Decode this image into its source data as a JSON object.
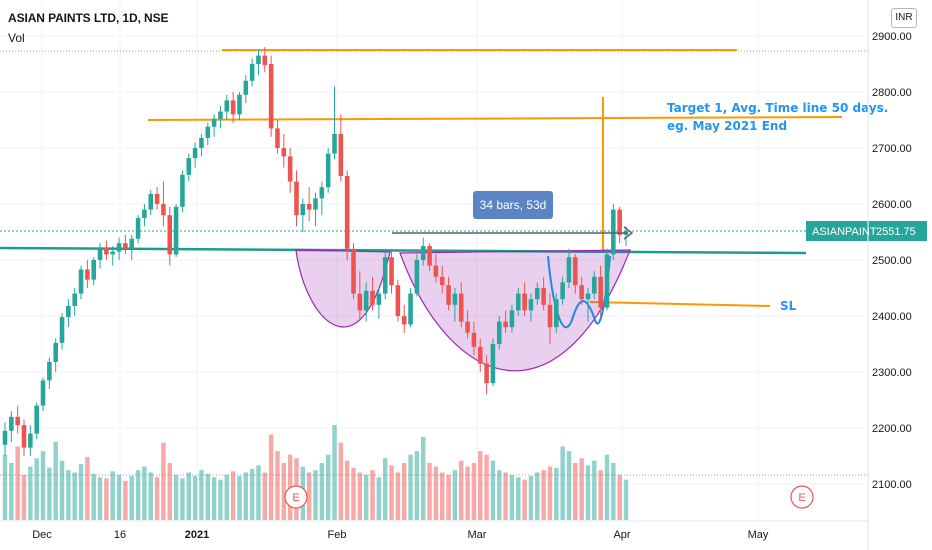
{
  "header": {
    "title": "ASIAN PAINTS LTD, 1D, NSE",
    "indicator": "Vol"
  },
  "currency": "INR",
  "colors": {
    "up": "#26a69a",
    "down": "#ef5350",
    "neckline": "#1a9e8c",
    "level": "#ff9800",
    "cup": "#9c27b0",
    "annotation": "#2196f3",
    "handle": "#1e88e5"
  },
  "price_tag": {
    "symbol": "ASIANPAINT",
    "price": "2551.75"
  },
  "earnings_marker": "E",
  "annotations": {
    "target": [
      "Target 1, Avg. Time line 50 days.",
      "eg. May 2021 End"
    ],
    "stop_loss": "SL",
    "range": "34 bars, 53d"
  },
  "chart_data": {
    "type": "candlestick",
    "yaxis": {
      "ticks": [
        "2100.00",
        "2200.00",
        "2300.00",
        "2400.00",
        "2500.00",
        "2600.00",
        "2700.00",
        "2800.00",
        "2900.00"
      ],
      "range": [
        2035,
        2920
      ]
    },
    "xaxis": {
      "ticks": [
        "Dec",
        "16",
        "2021",
        "Feb",
        "Mar",
        "Apr",
        "May"
      ]
    },
    "levels": {
      "top": 2875,
      "target": 2755,
      "neckline": 2515,
      "stop_loss": 2425,
      "last_price": 2551.75
    },
    "candles_ohlc": [
      [
        2170,
        2210,
        2150,
        2195
      ],
      [
        2195,
        2230,
        2175,
        2220
      ],
      [
        2220,
        2240,
        2190,
        2205
      ],
      [
        2205,
        2215,
        2150,
        2165
      ],
      [
        2165,
        2205,
        2150,
        2190
      ],
      [
        2190,
        2245,
        2180,
        2240
      ],
      [
        2240,
        2290,
        2230,
        2285
      ],
      [
        2285,
        2325,
        2270,
        2318
      ],
      [
        2318,
        2360,
        2300,
        2352
      ],
      [
        2352,
        2405,
        2340,
        2398
      ],
      [
        2398,
        2430,
        2380,
        2418
      ],
      [
        2418,
        2450,
        2400,
        2440
      ],
      [
        2440,
        2490,
        2430,
        2483
      ],
      [
        2483,
        2500,
        2450,
        2465
      ],
      [
        2465,
        2505,
        2455,
        2500
      ],
      [
        2500,
        2530,
        2485,
        2522
      ],
      [
        2522,
        2535,
        2500,
        2510
      ],
      [
        2510,
        2525,
        2490,
        2515
      ],
      [
        2515,
        2540,
        2500,
        2530
      ],
      [
        2530,
        2545,
        2510,
        2520
      ],
      [
        2520,
        2545,
        2500,
        2538
      ],
      [
        2538,
        2580,
        2530,
        2575
      ],
      [
        2575,
        2600,
        2560,
        2590
      ],
      [
        2590,
        2625,
        2580,
        2618
      ],
      [
        2618,
        2630,
        2590,
        2600
      ],
      [
        2600,
        2640,
        2560,
        2580
      ],
      [
        2580,
        2595,
        2490,
        2510
      ],
      [
        2510,
        2600,
        2505,
        2595
      ],
      [
        2595,
        2660,
        2585,
        2652
      ],
      [
        2652,
        2690,
        2640,
        2682
      ],
      [
        2682,
        2710,
        2665,
        2700
      ],
      [
        2700,
        2725,
        2685,
        2718
      ],
      [
        2718,
        2745,
        2705,
        2738
      ],
      [
        2738,
        2760,
        2720,
        2752
      ],
      [
        2752,
        2775,
        2735,
        2765
      ],
      [
        2765,
        2795,
        2750,
        2785
      ],
      [
        2785,
        2800,
        2745,
        2760
      ],
      [
        2760,
        2800,
        2750,
        2795
      ],
      [
        2795,
        2830,
        2780,
        2820
      ],
      [
        2820,
        2860,
        2810,
        2850
      ],
      [
        2850,
        2875,
        2830,
        2865
      ],
      [
        2865,
        2880,
        2835,
        2848
      ],
      [
        2850,
        2865,
        2720,
        2735
      ],
      [
        2735,
        2750,
        2690,
        2700
      ],
      [
        2700,
        2725,
        2665,
        2685
      ],
      [
        2685,
        2700,
        2620,
        2640
      ],
      [
        2640,
        2660,
        2560,
        2580
      ],
      [
        2580,
        2610,
        2550,
        2600
      ],
      [
        2600,
        2630,
        2570,
        2590
      ],
      [
        2590,
        2620,
        2560,
        2610
      ],
      [
        2610,
        2640,
        2580,
        2630
      ],
      [
        2630,
        2700,
        2620,
        2690
      ],
      [
        2690,
        2810,
        2680,
        2725
      ],
      [
        2725,
        2760,
        2640,
        2650
      ],
      [
        2650,
        2660,
        2500,
        2520
      ],
      [
        2520,
        2530,
        2430,
        2440
      ],
      [
        2440,
        2480,
        2395,
        2410
      ],
      [
        2410,
        2460,
        2390,
        2445
      ],
      [
        2445,
        2470,
        2410,
        2420
      ],
      [
        2420,
        2450,
        2395,
        2440
      ],
      [
        2440,
        2520,
        2430,
        2505
      ],
      [
        2505,
        2520,
        2440,
        2455
      ],
      [
        2455,
        2465,
        2390,
        2400
      ],
      [
        2400,
        2420,
        2370,
        2385
      ],
      [
        2385,
        2450,
        2380,
        2440
      ],
      [
        2440,
        2510,
        2435,
        2500
      ],
      [
        2500,
        2540,
        2490,
        2525
      ],
      [
        2525,
        2530,
        2480,
        2490
      ],
      [
        2490,
        2510,
        2460,
        2470
      ],
      [
        2470,
        2490,
        2440,
        2455
      ],
      [
        2455,
        2470,
        2410,
        2420
      ],
      [
        2420,
        2450,
        2390,
        2440
      ],
      [
        2440,
        2460,
        2380,
        2390
      ],
      [
        2390,
        2410,
        2360,
        2370
      ],
      [
        2370,
        2390,
        2330,
        2345
      ],
      [
        2345,
        2360,
        2300,
        2315
      ],
      [
        2315,
        2330,
        2260,
        2280
      ],
      [
        2280,
        2360,
        2275,
        2350
      ],
      [
        2350,
        2400,
        2340,
        2390
      ],
      [
        2390,
        2410,
        2370,
        2380
      ],
      [
        2380,
        2420,
        2370,
        2410
      ],
      [
        2410,
        2450,
        2400,
        2440
      ],
      [
        2440,
        2460,
        2400,
        2410
      ],
      [
        2410,
        2440,
        2390,
        2430
      ],
      [
        2430,
        2460,
        2420,
        2450
      ],
      [
        2450,
        2470,
        2410,
        2420
      ],
      [
        2420,
        2440,
        2350,
        2380
      ],
      [
        2380,
        2440,
        2370,
        2430
      ],
      [
        2430,
        2470,
        2420,
        2460
      ],
      [
        2460,
        2520,
        2450,
        2505
      ],
      [
        2505,
        2510,
        2440,
        2455
      ],
      [
        2455,
        2470,
        2420,
        2430
      ],
      [
        2430,
        2450,
        2390,
        2440
      ],
      [
        2440,
        2480,
        2430,
        2470
      ],
      [
        2470,
        2490,
        2400,
        2415
      ],
      [
        2415,
        2520,
        2410,
        2510
      ],
      [
        2510,
        2600,
        2500,
        2590
      ],
      [
        2590,
        2595,
        2530,
        2545
      ],
      [
        2545,
        2560,
        2525,
        2552
      ]
    ],
    "volume": [
      55,
      48,
      62,
      38,
      45,
      52,
      58,
      44,
      66,
      50,
      42,
      40,
      47,
      53,
      39,
      36,
      35,
      41,
      38,
      33,
      37,
      42,
      45,
      40,
      36,
      65,
      48,
      38,
      35,
      40,
      37,
      42,
      39,
      36,
      34,
      38,
      41,
      37,
      40,
      43,
      46,
      40,
      72,
      58,
      48,
      55,
      52,
      45,
      40,
      42,
      48,
      55,
      80,
      65,
      50,
      44,
      40,
      38,
      42,
      36,
      52,
      46,
      40,
      48,
      55,
      58,
      70,
      48,
      45,
      40,
      38,
      42,
      50,
      45,
      48,
      58,
      55,
      50,
      42,
      40,
      38,
      36,
      34,
      37,
      40,
      42,
      45,
      44,
      62,
      58,
      48,
      52,
      46,
      50,
      42,
      55,
      48,
      38,
      34
    ]
  }
}
